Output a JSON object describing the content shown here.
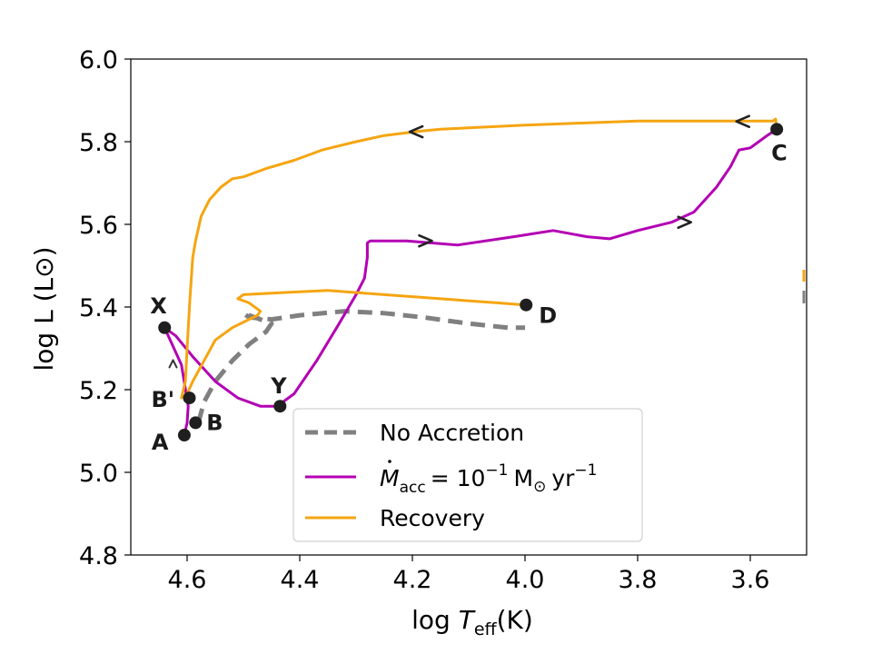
{
  "chart_data": {
    "type": "line",
    "xlabel_base": "log",
    "xlabel_symbol": "T",
    "xlabel_sub": "eff",
    "xlabel_unit": "(K)",
    "ylabel": "log L (L⊙)",
    "xlim": [
      4.7,
      3.5
    ],
    "ylim": [
      4.8,
      6.0
    ],
    "x_ticks": [
      "4.6",
      "4.4",
      "4.2",
      "4.0",
      "3.8",
      "3.6"
    ],
    "x_tick_values": [
      4.6,
      4.4,
      4.2,
      4.0,
      3.8,
      3.6
    ],
    "y_ticks": [
      "4.8",
      "5.0",
      "5.2",
      "5.4",
      "5.6",
      "5.8",
      "6.0"
    ],
    "y_tick_values": [
      4.8,
      5.0,
      5.2,
      5.4,
      5.6,
      5.8,
      6.0
    ],
    "grid": false,
    "legend_position": "lower-center",
    "colors": {
      "no_accretion": "#808080",
      "accretion": "#b300b3",
      "recovery": "#f5a511",
      "marker": "#1f1f1f"
    },
    "series": [
      {
        "key": "no_accretion",
        "name": "No Accretion",
        "style": "dashed",
        "x": [
          4.58,
          4.57,
          4.55,
          4.52,
          4.49,
          4.46,
          4.45,
          4.47,
          4.5,
          4.49,
          4.45,
          4.4,
          4.32,
          4.25,
          4.18,
          4.1,
          4.03,
          4.0
        ],
        "y": [
          5.12,
          5.17,
          5.22,
          5.27,
          5.31,
          5.34,
          5.36,
          5.37,
          5.385,
          5.375,
          5.37,
          5.38,
          5.39,
          5.385,
          5.375,
          5.36,
          5.35,
          5.35
        ]
      },
      {
        "key": "accretion",
        "name": "10^-1 M⊙ yr^-1",
        "legend_symbol": "M",
        "legend_sub": "acc",
        "legend_eq": "= 10",
        "legend_exp": "−1",
        "legend_unit_m": "M",
        "legend_unit_sub": "⊙",
        "legend_unit_yr": "yr",
        "legend_unit_exp": "−1",
        "style": "solid",
        "x": [
          4.605,
          4.6,
          4.598,
          4.61,
          4.64,
          4.62,
          4.59,
          4.55,
          4.51,
          4.47,
          4.44,
          4.41,
          4.37,
          4.33,
          4.3,
          4.285,
          4.28,
          4.28,
          4.275,
          4.21,
          4.12,
          4.02,
          3.95,
          3.89,
          3.85,
          3.8,
          3.74,
          3.7,
          3.66,
          3.635,
          3.62,
          3.6,
          3.585,
          3.57,
          3.553
        ],
        "y": [
          5.09,
          5.12,
          5.16,
          5.26,
          5.35,
          5.33,
          5.28,
          5.22,
          5.18,
          5.16,
          5.16,
          5.19,
          5.27,
          5.36,
          5.43,
          5.47,
          5.52,
          5.555,
          5.56,
          5.56,
          5.55,
          5.57,
          5.585,
          5.57,
          5.565,
          5.585,
          5.605,
          5.63,
          5.69,
          5.74,
          5.78,
          5.785,
          5.8,
          5.815,
          5.83
        ]
      },
      {
        "key": "recovery",
        "name": "Recovery",
        "style": "solid",
        "x": [
          3.553,
          3.555,
          3.56,
          3.6,
          3.7,
          3.8,
          3.9,
          4.0,
          4.08,
          4.15,
          4.19,
          4.25,
          4.3,
          4.36,
          4.41,
          4.46,
          4.5,
          4.52,
          4.54,
          4.56,
          4.575,
          4.585,
          4.59,
          4.595,
          4.6,
          4.603,
          4.61,
          4.6,
          4.59,
          4.57,
          4.55,
          4.52,
          4.49,
          4.475,
          4.47,
          4.49,
          4.51,
          4.5,
          4.43,
          4.35,
          4.25,
          4.15,
          4.05,
          4.0
        ],
        "y": [
          5.83,
          5.855,
          5.85,
          5.85,
          5.85,
          5.85,
          5.845,
          5.84,
          5.835,
          5.83,
          5.825,
          5.815,
          5.8,
          5.78,
          5.755,
          5.735,
          5.715,
          5.71,
          5.69,
          5.66,
          5.62,
          5.56,
          5.52,
          5.42,
          5.3,
          5.22,
          5.18,
          5.19,
          5.22,
          5.27,
          5.32,
          5.35,
          5.37,
          5.38,
          5.39,
          5.41,
          5.42,
          5.43,
          5.435,
          5.44,
          5.43,
          5.42,
          5.41,
          5.405
        ]
      }
    ],
    "arrows": [
      {
        "series": "recovery",
        "x": 4.195,
        "y": 5.824,
        "dir": "left"
      },
      {
        "series": "recovery",
        "x": 3.615,
        "y": 5.849,
        "dir": "left"
      },
      {
        "series": "accretion",
        "x": 4.175,
        "y": 5.56,
        "dir": "right"
      },
      {
        "series": "accretion",
        "x": 3.715,
        "y": 5.605,
        "dir": "right"
      },
      {
        "series": "accretion",
        "x": 4.625,
        "y": 5.265,
        "dir": "down-tip"
      }
    ],
    "points": [
      {
        "label": "A",
        "x": 4.605,
        "y": 5.09,
        "dx": -36,
        "dy": 16
      },
      {
        "label": "B",
        "x": 4.585,
        "y": 5.12,
        "dx": 12,
        "dy": 8
      },
      {
        "label": "B'",
        "x": 4.596,
        "y": 5.18,
        "dx": -42,
        "dy": 10
      },
      {
        "label": "X",
        "x": 4.64,
        "y": 5.35,
        "dx": -16,
        "dy": -16
      },
      {
        "label": "Y",
        "x": 4.435,
        "y": 5.16,
        "dx": -10,
        "dy": -14
      },
      {
        "label": "C",
        "x": 3.553,
        "y": 5.83,
        "dx": -6,
        "dy": 34
      },
      {
        "label": "D",
        "x": 3.998,
        "y": 5.405,
        "dx": 14,
        "dy": 20
      }
    ]
  }
}
